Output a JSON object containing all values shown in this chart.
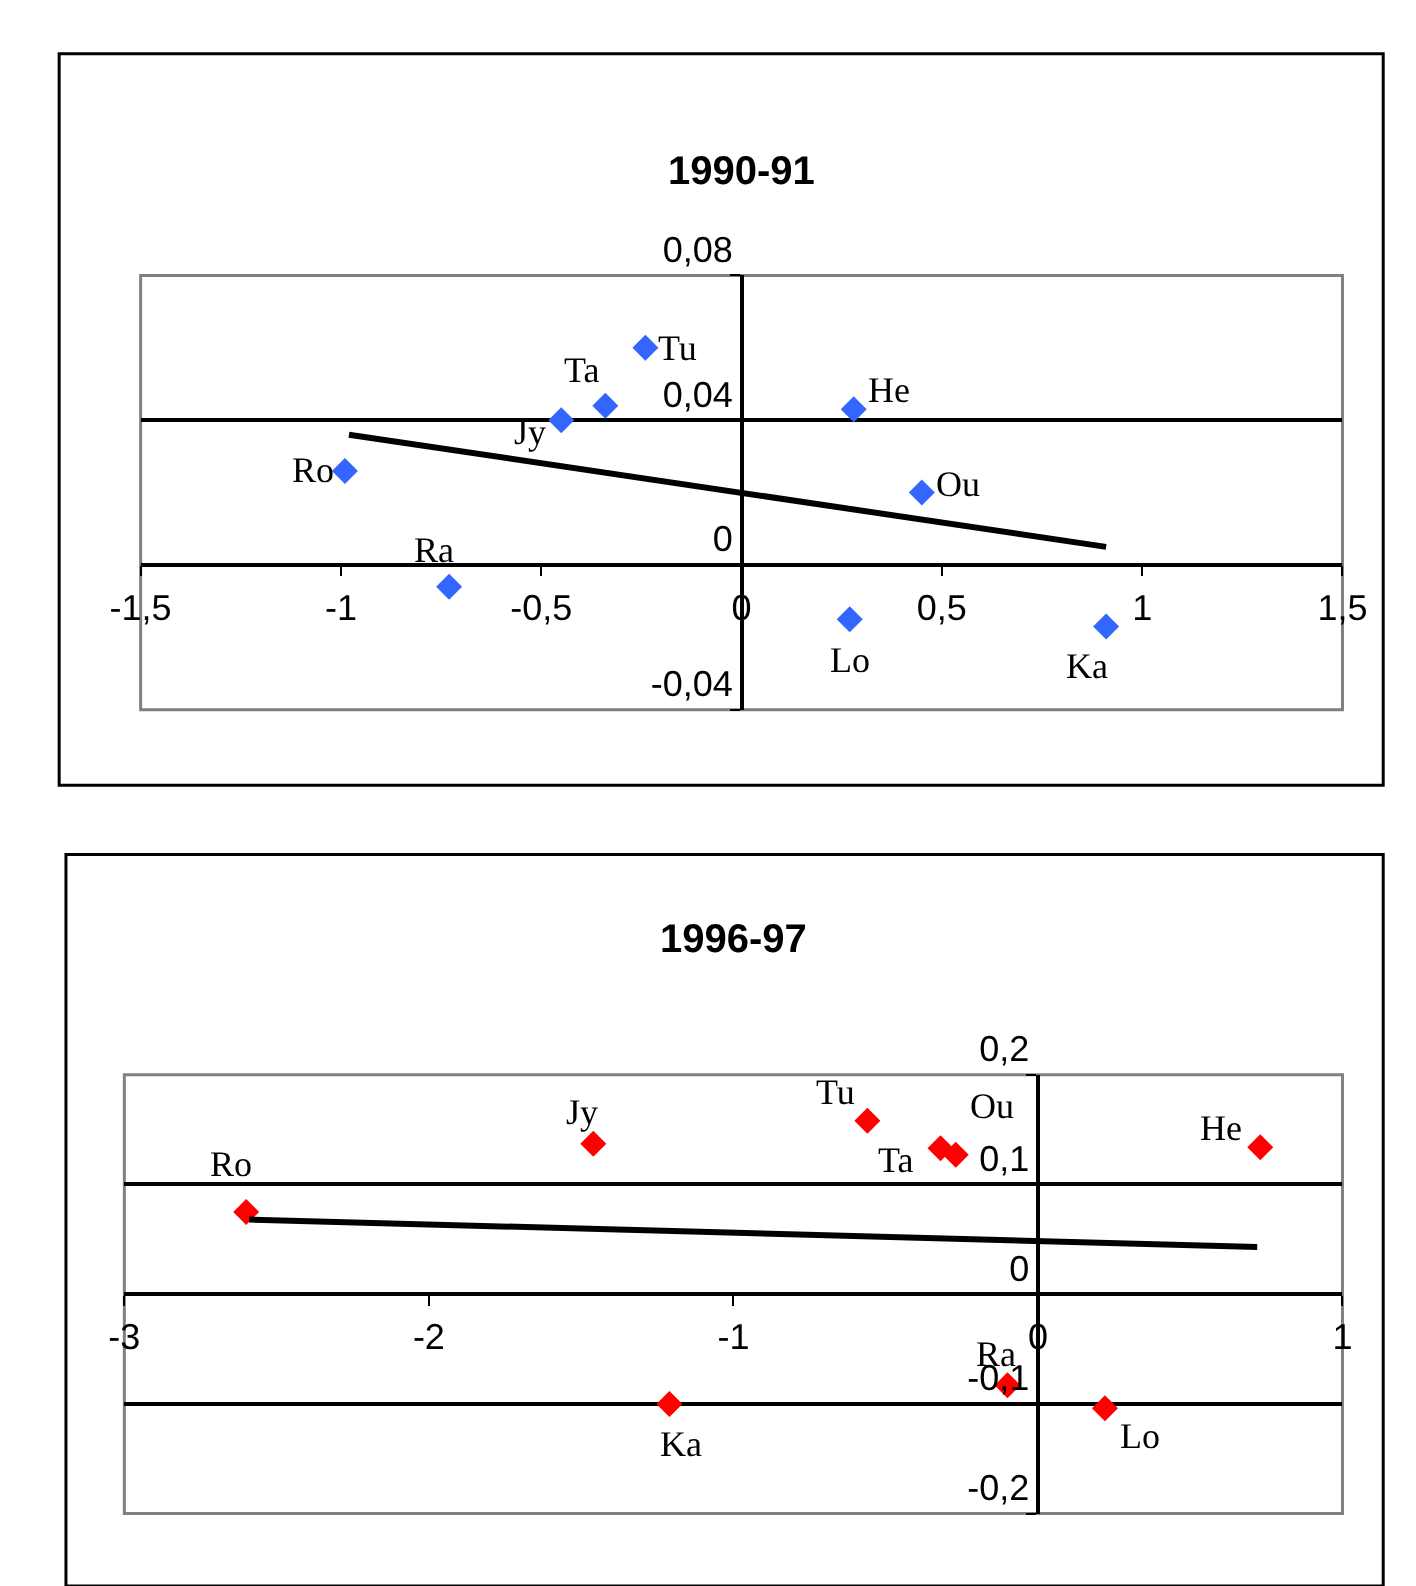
{
  "chart_data": [
    {
      "type": "scatter",
      "title": "1990-91",
      "marker": "diamond",
      "grid": "y",
      "xlim": [
        -1.5,
        1.5
      ],
      "xticks": [
        {
          "value": -1.5,
          "label": "-1,5"
        },
        -1,
        {
          "value": -0.5,
          "label": "-0,5"
        },
        0,
        {
          "value": 0.5,
          "label": "0,5"
        },
        1,
        {
          "value": 1.5,
          "label": "1,5"
        }
      ],
      "ylim": [
        -0.04,
        0.08
      ],
      "yticks": [
        {
          "value": -0.04,
          "label": "-0,04"
        },
        0,
        {
          "value": 0.04,
          "label": "0,04"
        },
        {
          "value": 0.08,
          "label": "0,08"
        }
      ],
      "series": [
        {
          "type": "scatter",
          "color": "#3366ff",
          "x": [
            -0.99,
            -0.73,
            -0.45,
            -0.34,
            -0.24,
            0.28,
            0.45,
            0.27,
            0.91
          ],
          "values": [
            0.026,
            -0.006,
            0.04,
            0.044,
            0.06,
            0.043,
            0.02,
            -0.015,
            -0.017
          ]
        },
        {
          "type": "line",
          "color": "#000000",
          "marker": "none",
          "x": [
            -0.98,
            0.91
          ],
          "values": [
            0.036,
            0.005
          ]
        }
      ],
      "annotations": [
        {
          "text": "Ro",
          "x": -0.99,
          "y": 0.026
        },
        {
          "text": "Ra",
          "x": -0.73,
          "y": -0.006
        },
        {
          "text": "Jy",
          "x": -0.45,
          "y": 0.04
        },
        {
          "text": "Ta",
          "x": -0.34,
          "y": 0.044
        },
        {
          "text": "Tu",
          "x": -0.24,
          "y": 0.06
        },
        {
          "text": "He",
          "x": 0.28,
          "y": 0.043
        },
        {
          "text": "Ou",
          "x": 0.45,
          "y": 0.02
        },
        {
          "text": "Lo",
          "x": 0.27,
          "y": -0.015
        },
        {
          "text": "Ka",
          "x": 0.91,
          "y": -0.017
        }
      ]
    },
    {
      "type": "scatter",
      "title": "1996-97",
      "marker": "diamond",
      "grid": "y",
      "xlim": [
        -3,
        1
      ],
      "xticks": [
        -3,
        -2,
        -1,
        0,
        1
      ],
      "ylim": [
        -0.2,
        0.2
      ],
      "yticks": [
        {
          "value": -0.2,
          "label": "-0,2"
        },
        {
          "value": -0.1,
          "label": "-0,1"
        },
        0,
        {
          "value": 0.1,
          "label": "0,1"
        },
        {
          "value": 0.2,
          "label": "0,2"
        }
      ],
      "series": [
        {
          "type": "scatter",
          "color": "#ff0000",
          "x": [
            -2.6,
            -1.46,
            -1.21,
            -0.56,
            -0.32,
            -0.27,
            -0.1,
            0.22,
            0.73
          ],
          "values": [
            0.075,
            0.137,
            -0.1,
            0.158,
            0.133,
            0.127,
            -0.083,
            -0.104,
            0.134
          ]
        },
        {
          "type": "line",
          "color": "#000000",
          "marker": "none",
          "x": [
            -2.59,
            0.72
          ],
          "values": [
            0.068,
            0.043
          ]
        }
      ],
      "annotations": [
        {
          "text": "Ro",
          "x": -2.6,
          "y": 0.075
        },
        {
          "text": "Jy",
          "x": -1.46,
          "y": 0.137
        },
        {
          "text": "Ka",
          "x": -1.21,
          "y": -0.1
        },
        {
          "text": "Tu",
          "x": -0.56,
          "y": 0.158
        },
        {
          "text": "Ta",
          "x": -0.32,
          "y": 0.133
        },
        {
          "text": "Ou",
          "x": -0.27,
          "y": 0.127
        },
        {
          "text": "Ra",
          "x": -0.1,
          "y": -0.083
        },
        {
          "text": "Lo",
          "x": 0.22,
          "y": -0.104
        },
        {
          "text": "He",
          "x": 0.73,
          "y": 0.134
        }
      ]
    }
  ]
}
